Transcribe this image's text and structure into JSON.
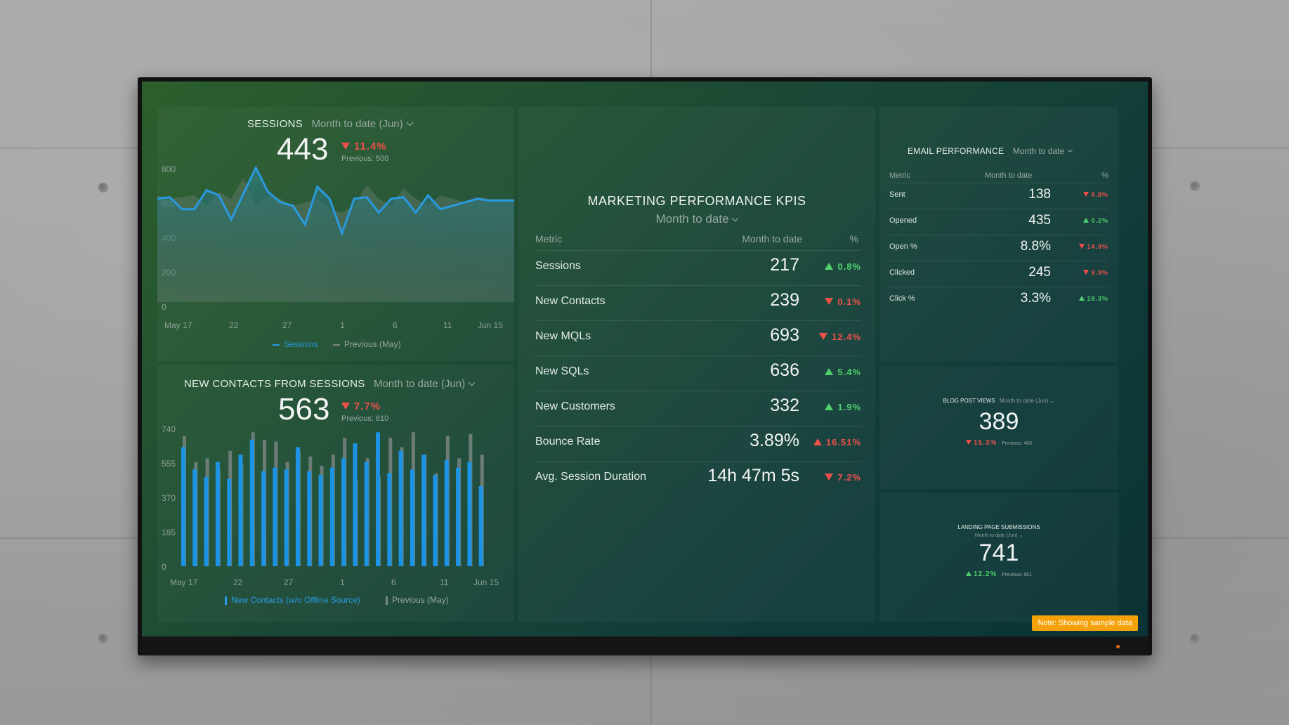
{
  "sessions": {
    "title": "SESSIONS",
    "period": "Month to date (Jun)",
    "value": "443",
    "change": "11.4%",
    "previous": "Previous: 500",
    "y_ticks": [
      "800",
      "600",
      "400",
      "200",
      "0"
    ],
    "x_ticks": [
      "May 17",
      "22",
      "27",
      "1",
      "6",
      "11",
      "Jun 15"
    ],
    "legend_current": "Sessions",
    "legend_previous": "Previous (May)"
  },
  "contacts": {
    "title": "NEW CONTACTS FROM SESSIONS",
    "period": "Month to date (Jun)",
    "value": "563",
    "change": "7.7%",
    "previous": "Previous: 610",
    "y_ticks": [
      "740",
      "555",
      "370",
      "185",
      "0"
    ],
    "x_ticks": [
      "May 17",
      "22",
      "27",
      "1",
      "6",
      "11",
      "Jun 15"
    ],
    "legend_current": "New Contacts (w/o Offline Source)",
    "legend_previous": "Previous (May)"
  },
  "kpi": {
    "title": "MARKETING PERFORMANCE KPIS",
    "period": "Month to date",
    "col_metric": "Metric",
    "col_value": "Month to date",
    "col_pct": "%",
    "rows": [
      {
        "metric": "Sessions",
        "value": "217",
        "change": "0.8%",
        "dir": "up",
        "color": "#4fd06c"
      },
      {
        "metric": "New Contacts",
        "value": "239",
        "change": "0.1%",
        "dir": "down",
        "color": "#f0504a"
      },
      {
        "metric": "New MQLs",
        "value": "693",
        "change": "12.4%",
        "dir": "down",
        "color": "#f0504a"
      },
      {
        "metric": "New SQLs",
        "value": "636",
        "change": "5.4%",
        "dir": "up",
        "color": "#4fd06c"
      },
      {
        "metric": "New Customers",
        "value": "332",
        "change": "1.9%",
        "dir": "up",
        "color": "#4fd06c"
      },
      {
        "metric": "Bounce Rate",
        "value": "3.89%",
        "change": "16.51%",
        "dir": "up",
        "color": "#f0504a"
      },
      {
        "metric": "Avg. Session Duration",
        "value": "14h 47m 5s",
        "change": "7.2%",
        "dir": "down",
        "color": "#f0504a"
      }
    ]
  },
  "email": {
    "title": "EMAIL PERFORMANCE",
    "period": "Month to date",
    "col_metric": "Metric",
    "col_value": "Month to date",
    "col_pct": "%",
    "rows": [
      {
        "metric": "Sent",
        "value": "138",
        "change": "8.8%",
        "dir": "down",
        "color": "#f0504a"
      },
      {
        "metric": "Opened",
        "value": "435",
        "change": "0.2%",
        "dir": "up",
        "color": "#4fd06c"
      },
      {
        "metric": "Open %",
        "value": "8.8%",
        "change": "14.9%",
        "dir": "down",
        "color": "#f0504a"
      },
      {
        "metric": "Clicked",
        "value": "245",
        "change": "9.9%",
        "dir": "down",
        "color": "#f0504a"
      },
      {
        "metric": "Click %",
        "value": "3.3%",
        "change": "18.3%",
        "dir": "up",
        "color": "#4fd06c"
      }
    ]
  },
  "blog": {
    "title": "BLOG POST VIEWS",
    "period": "Month to date (Jun)",
    "value": "389",
    "change": "15.3%",
    "previous": "Previous: 460"
  },
  "landing": {
    "title": "LANDING PAGE SUBMISSIONS",
    "period": "Month to date (Jun)",
    "value": "741",
    "change": "12.2%",
    "previous": "Previous: 661"
  },
  "note": "Note: Showing sample data",
  "chart_data": [
    {
      "type": "area",
      "title": "SESSIONS",
      "ylim": [
        0,
        800
      ],
      "series": [
        {
          "name": "Sessions",
          "values": [
            600,
            610,
            540,
            540,
            650,
            620,
            480,
            630,
            780,
            640,
            580,
            560,
            450,
            670,
            600,
            400,
            600,
            610,
            520,
            600,
            610,
            520,
            620,
            540,
            560,
            580,
            600,
            590,
            590,
            590
          ]
        },
        {
          "name": "Previous (May)",
          "values": [
            620,
            600,
            610,
            620,
            560,
            640,
            600,
            720,
            560,
            620,
            600,
            560,
            580,
            600,
            540,
            520,
            560,
            680,
            600,
            560,
            660,
            600,
            560,
            620,
            600,
            580,
            610,
            600,
            600,
            600
          ]
        }
      ]
    },
    {
      "type": "bar",
      "title": "NEW CONTACTS FROM SESSIONS",
      "ylim": [
        0,
        740
      ],
      "series": [
        {
          "name": "New Contacts (w/o Offline Source)",
          "values": [
            640,
            520,
            480,
            560,
            470,
            600,
            680,
            510,
            530,
            520,
            640,
            510,
            490,
            530,
            580,
            660,
            560,
            720,
            500,
            620,
            520,
            600,
            490,
            570,
            530,
            560,
            430
          ]
        },
        {
          "name": "Previous (May)",
          "values": [
            700,
            560,
            580,
            520,
            620,
            550,
            720,
            680,
            670,
            560,
            620,
            590,
            540,
            600,
            690,
            460,
            580,
            480,
            690,
            640,
            720,
            600,
            500,
            700,
            580,
            710,
            600
          ]
        }
      ]
    }
  ]
}
